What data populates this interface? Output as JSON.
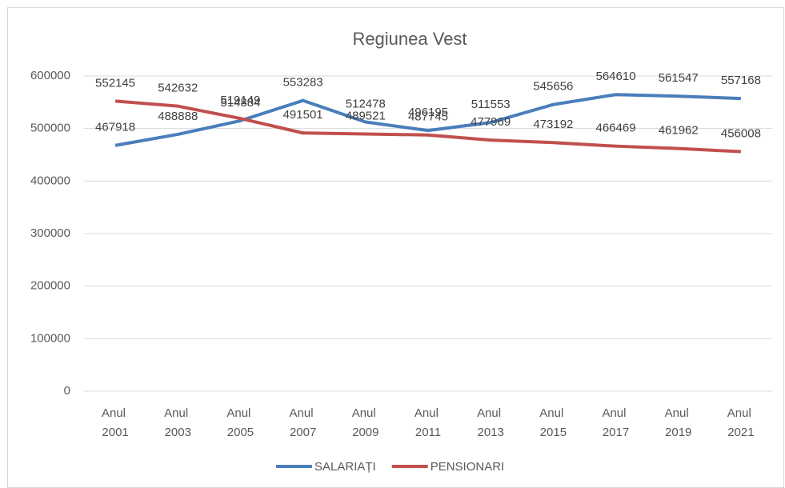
{
  "chart_data": {
    "type": "line",
    "title": "Regiunea Vest",
    "categories": [
      "Anul 2001",
      "Anul 2003",
      "Anul 2005",
      "Anul 2007",
      "Anul 2009",
      "Anul 2011",
      "Anul 2013",
      "Anul 2015",
      "Anul 2017",
      "Anul 2019",
      "Anul 2021"
    ],
    "series": [
      {
        "name": "SALARIAȚI",
        "color": "#4a7ebb",
        "values": [
          467918,
          488888,
          514884,
          553283,
          512478,
          496195,
          511553,
          545656,
          564610,
          561547,
          557168
        ]
      },
      {
        "name": "PENSIONARI",
        "color": "#c0504d",
        "values": [
          552145,
          542632,
          519149,
          491501,
          489521,
          487745,
          477969,
          473192,
          466469,
          461962,
          456008
        ]
      }
    ],
    "ylim": [
      0,
      600000
    ],
    "yticks": [
      0,
      100000,
      200000,
      300000,
      400000,
      500000,
      600000
    ],
    "grid": true,
    "legend": "bottom"
  }
}
